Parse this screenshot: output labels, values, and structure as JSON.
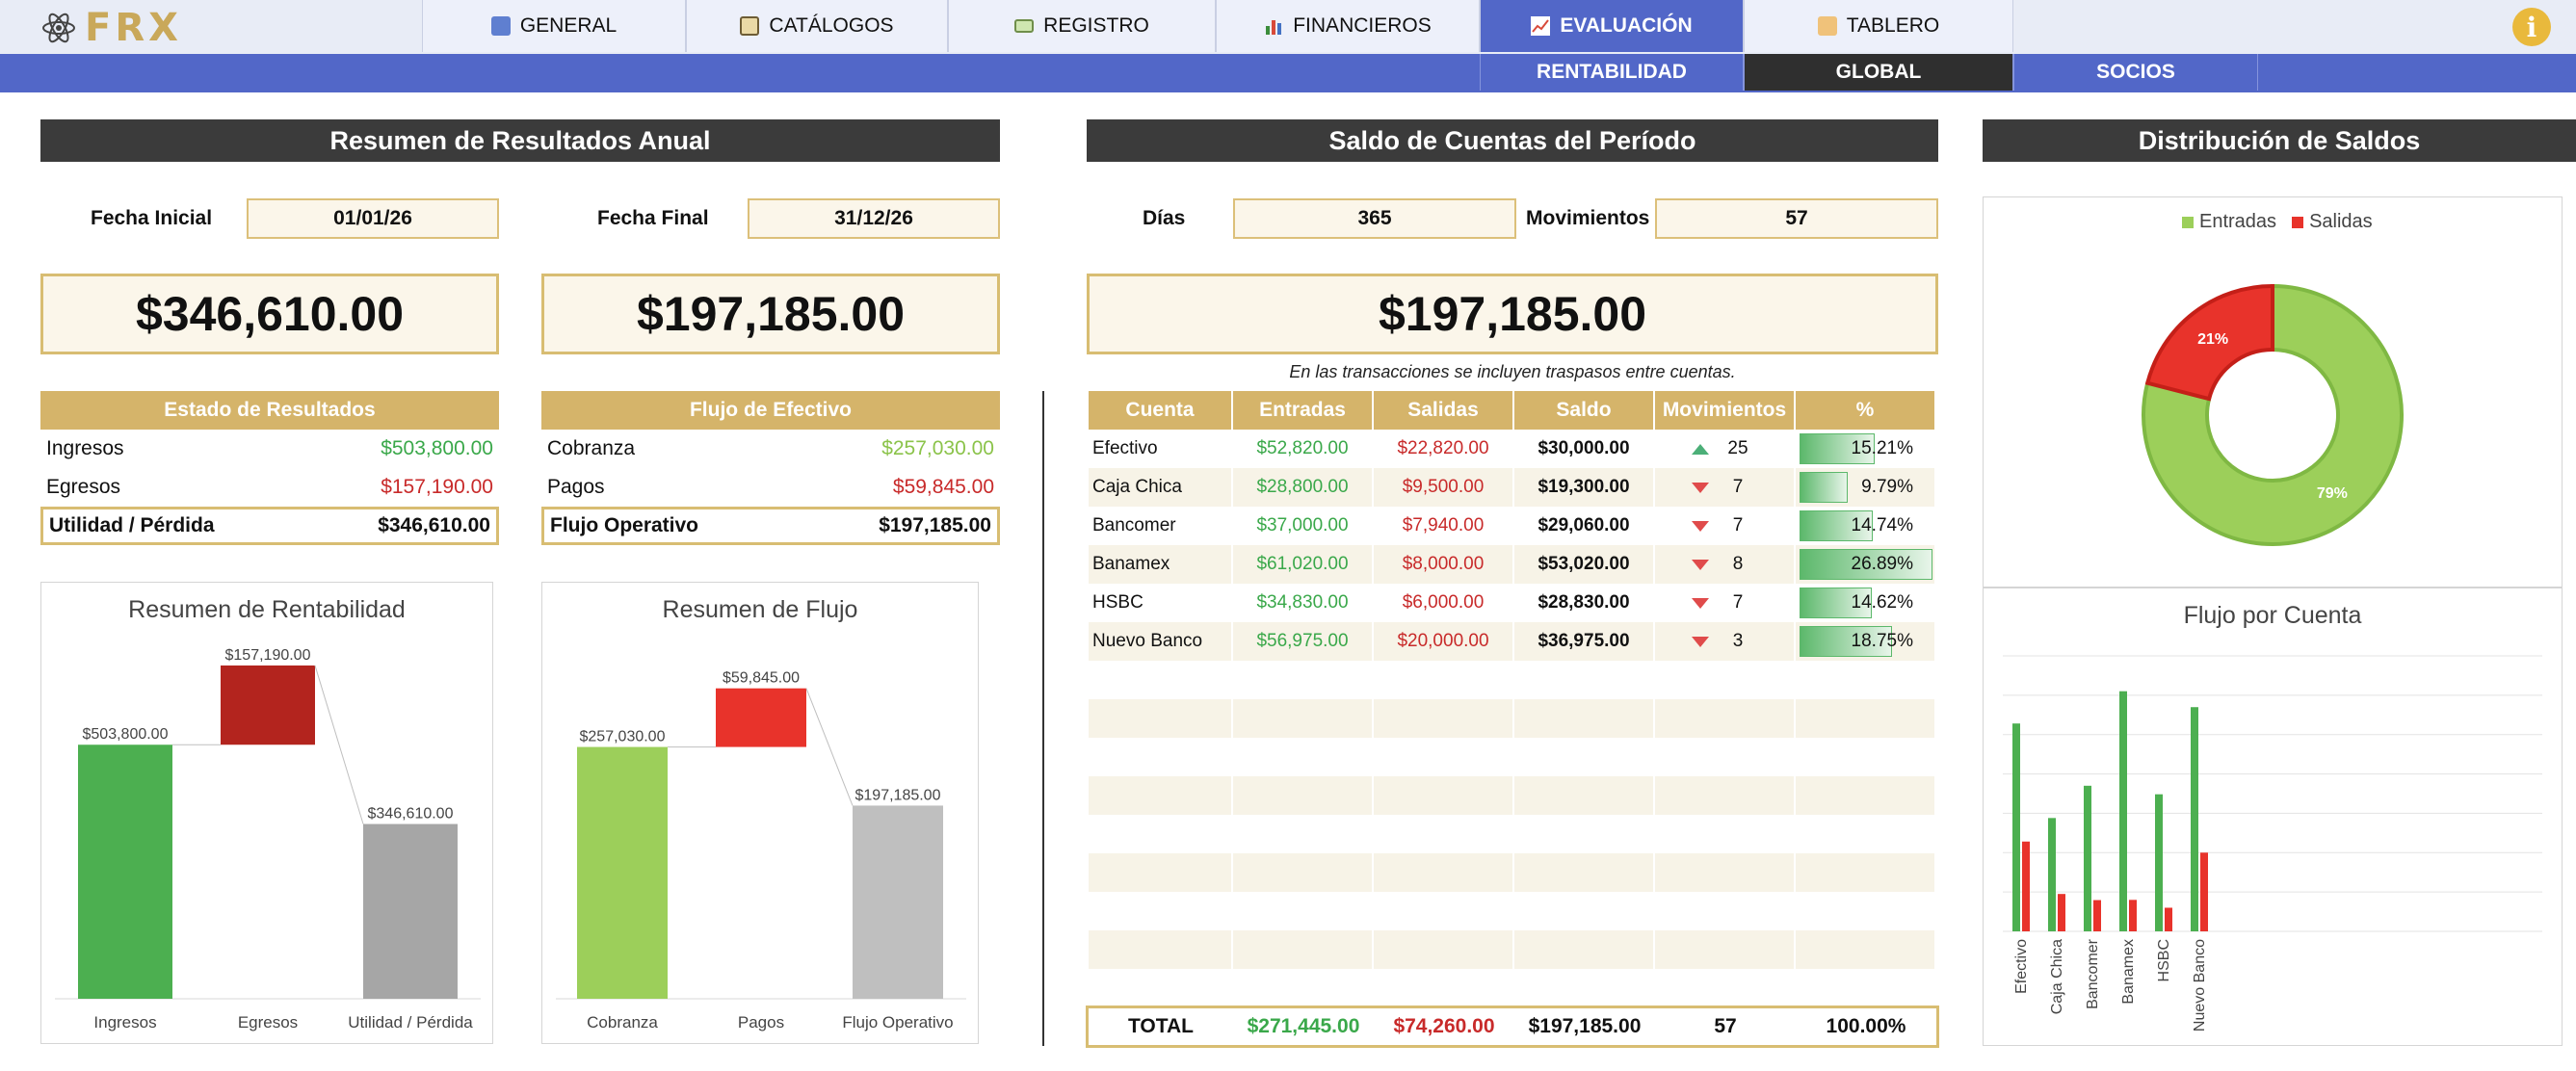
{
  "nav": {
    "logo": "FRX",
    "tabs": [
      {
        "label": "GENERAL",
        "icon": "info-icon"
      },
      {
        "label": "CATÁLOGOS",
        "icon": "book-icon"
      },
      {
        "label": "REGISTRO",
        "icon": "money-icon"
      },
      {
        "label": "FINANCIEROS",
        "icon": "bar-chart-icon"
      },
      {
        "label": "EVALUACIÓN",
        "icon": "line-chart-icon",
        "active": true
      },
      {
        "label": "TABLERO",
        "icon": "folder-icon"
      }
    ],
    "subtabs": [
      {
        "label": "RENTABILIDAD"
      },
      {
        "label": "GLOBAL",
        "active": true
      },
      {
        "label": "SOCIOS"
      }
    ]
  },
  "resumen": {
    "title": "Resumen de Resultados Anual",
    "fecha_inicial_label": "Fecha Inicial",
    "fecha_inicial": "01/01/26",
    "fecha_final_label": "Fecha Final",
    "fecha_final": "31/12/26",
    "big_utilidad": "$346,610.00",
    "big_flujo": "$197,185.00",
    "estado": {
      "header": "Estado de Resultados",
      "rows": [
        {
          "label": "Ingresos",
          "value": "$503,800.00"
        },
        {
          "label": "Egresos",
          "value": "$157,190.00"
        }
      ],
      "total_label": "Utilidad / Pérdida",
      "total_value": "$346,610.00"
    },
    "flujo": {
      "header": "Flujo de Efectivo",
      "rows": [
        {
          "label": "Cobranza",
          "value": "$257,030.00"
        },
        {
          "label": "Pagos",
          "value": "$59,845.00"
        }
      ],
      "total_label": "Flujo Operativo",
      "total_value": "$197,185.00"
    }
  },
  "saldo": {
    "title": "Saldo de Cuentas del Período",
    "dias_label": "Días",
    "dias": "365",
    "movimientos_label": "Movimientos",
    "movimientos": "57",
    "big_saldo": "$197,185.00",
    "note": "En las transacciones se incluyen traspasos entre cuentas.",
    "headers": [
      "Cuenta",
      "Entradas",
      "Salidas",
      "Saldo",
      "Movimientos",
      "%"
    ],
    "rows": [
      {
        "cuenta": "Efectivo",
        "entradas": "$52,820.00",
        "salidas": "$22,820.00",
        "saldo": "$30,000.00",
        "trend": "up",
        "mov": "25",
        "pct": "15.21%",
        "pct_value": 15.21
      },
      {
        "cuenta": "Caja Chica",
        "entradas": "$28,800.00",
        "salidas": "$9,500.00",
        "saldo": "$19,300.00",
        "trend": "down",
        "mov": "7",
        "pct": "9.79%",
        "pct_value": 9.79
      },
      {
        "cuenta": "Bancomer",
        "entradas": "$37,000.00",
        "salidas": "$7,940.00",
        "saldo": "$29,060.00",
        "trend": "down",
        "mov": "7",
        "pct": "14.74%",
        "pct_value": 14.74
      },
      {
        "cuenta": "Banamex",
        "entradas": "$61,020.00",
        "salidas": "$8,000.00",
        "saldo": "$53,020.00",
        "trend": "down",
        "mov": "8",
        "pct": "26.89%",
        "pct_value": 26.89
      },
      {
        "cuenta": "HSBC",
        "entradas": "$34,830.00",
        "salidas": "$6,000.00",
        "saldo": "$28,830.00",
        "trend": "down",
        "mov": "7",
        "pct": "14.62%",
        "pct_value": 14.62
      },
      {
        "cuenta": "Nuevo Banco",
        "entradas": "$56,975.00",
        "salidas": "$20,000.00",
        "saldo": "$36,975.00",
        "trend": "down",
        "mov": "3",
        "pct": "18.75%",
        "pct_value": 18.75
      }
    ],
    "total": {
      "label": "TOTAL",
      "entradas": "$271,445.00",
      "salidas": "$74,260.00",
      "saldo": "$197,185.00",
      "mov": "57",
      "pct": "100.00%"
    }
  },
  "distribucion": {
    "title": "Distribución de Saldos"
  },
  "chart_data": [
    {
      "type": "bar",
      "title": "Resumen de Rentabilidad",
      "categories": [
        "Ingresos",
        "Egresos",
        "Utilidad / Pérdida"
      ],
      "values": [
        503800,
        157190,
        346610
      ],
      "labels": [
        "$503,800.00",
        "$157,190.00",
        "$346,610.00"
      ],
      "colors": [
        "#4caf50",
        "#b3241e",
        "#a6a6a6"
      ],
      "ylim": [
        0,
        680000
      ]
    },
    {
      "type": "bar",
      "title": "Resumen de Flujo",
      "categories": [
        "Cobranza",
        "Pagos",
        "Flujo Operativo"
      ],
      "values": [
        257030,
        59845,
        197185
      ],
      "labels": [
        "$257,030.00",
        "$59,845.00",
        "$197,185.00"
      ],
      "colors": [
        "#9ccf5a",
        "#e8332b",
        "#bfbfbf"
      ],
      "ylim": [
        0,
        350000
      ]
    },
    {
      "type": "pie",
      "categories": [
        "Entradas",
        "Salidas"
      ],
      "values": [
        79,
        21
      ],
      "labels": [
        "79%",
        "21%"
      ],
      "colors": [
        "#9ccf5a",
        "#e8332b"
      ],
      "legend": "top"
    },
    {
      "type": "bar",
      "title": "Flujo por Cuenta",
      "categories": [
        "Efectivo",
        "Caja Chica",
        "Bancomer",
        "Banamex",
        "HSBC",
        "Nuevo Banco"
      ],
      "series": [
        {
          "name": "Entradas",
          "values": [
            52820,
            28800,
            37000,
            61020,
            34830,
            56975
          ],
          "color": "#4caf50"
        },
        {
          "name": "Salidas",
          "values": [
            22820,
            9500,
            7940,
            8000,
            6000,
            20000
          ],
          "color": "#e8332b"
        }
      ],
      "ylim": [
        0,
        70000
      ],
      "grid": true
    }
  ]
}
